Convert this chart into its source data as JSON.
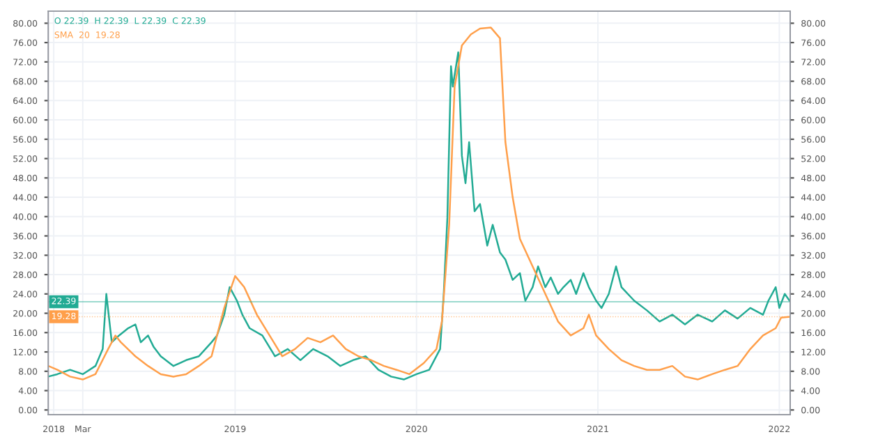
{
  "chart_data": {
    "type": "line",
    "annotations": [
      "O 22.39  H 22.39  L 22.39  C 22.39",
      "SMA  20  19.28"
    ],
    "series": [
      {
        "color": "#22ab94",
        "x": [
          2017.97,
          2018.02,
          2018.09,
          2018.16,
          2018.23,
          2018.27,
          2018.29,
          2018.32,
          2018.36,
          2018.41,
          2018.45,
          2018.48,
          2018.52,
          2018.55,
          2018.59,
          2018.66,
          2018.73,
          2018.8,
          2018.87,
          2018.9,
          2018.94,
          2018.97,
          2019.01,
          2019.04,
          2019.08,
          2019.15,
          2019.22,
          2019.29,
          2019.36,
          2019.43,
          2019.51,
          2019.58,
          2019.65,
          2019.72,
          2019.79,
          2019.86,
          2019.93,
          2020.0,
          2020.07,
          2020.13,
          2020.15,
          2020.17,
          2020.19,
          2020.2,
          2020.23,
          2020.25,
          2020.27,
          2020.29,
          2020.32,
          2020.35,
          2020.39,
          2020.42,
          2020.46,
          2020.49,
          2020.53,
          2020.57,
          2020.6,
          2020.64,
          2020.67,
          2020.71,
          2020.74,
          2020.78,
          2020.81,
          2020.85,
          2020.88,
          2020.92,
          2020.95,
          2020.99,
          2021.02,
          2021.06,
          2021.1,
          2021.13,
          2021.2,
          2021.27,
          2021.34,
          2021.41,
          2021.48,
          2021.55,
          2021.63,
          2021.7,
          2021.77,
          2021.84,
          2021.91,
          2021.94,
          2021.98,
          2022.0,
          2022.03,
          2022.06
        ],
        "values": [
          6.9,
          7.4,
          8.3,
          7.4,
          9.1,
          12.6,
          24.0,
          14.0,
          15.4,
          16.9,
          17.7,
          14.0,
          15.4,
          13.1,
          11.1,
          9.1,
          10.3,
          11.1,
          14.0,
          15.4,
          19.7,
          25.4,
          22.6,
          19.7,
          16.9,
          15.4,
          11.1,
          12.6,
          10.3,
          12.6,
          11.1,
          9.1,
          10.3,
          11.1,
          8.3,
          6.9,
          6.3,
          7.4,
          8.3,
          12.6,
          24.0,
          39.7,
          71.1,
          66.9,
          74.0,
          52.6,
          46.9,
          55.4,
          41.1,
          42.6,
          34.0,
          38.3,
          32.6,
          31.1,
          26.9,
          28.3,
          22.6,
          25.4,
          29.7,
          25.4,
          27.4,
          24.0,
          25.4,
          26.9,
          24.0,
          28.3,
          25.4,
          22.6,
          21.1,
          24.0,
          29.7,
          25.4,
          22.6,
          20.6,
          18.3,
          19.7,
          17.7,
          19.7,
          18.3,
          20.6,
          18.9,
          21.1,
          19.7,
          22.6,
          25.4,
          21.1,
          24.0,
          22.4
        ]
      },
      {
        "color": "#ff9f4a",
        "x": [
          2017.97,
          2018.02,
          2018.09,
          2018.16,
          2018.23,
          2018.3,
          2018.34,
          2018.37,
          2018.45,
          2018.52,
          2018.59,
          2018.66,
          2018.73,
          2018.8,
          2018.87,
          2018.94,
          2019.0,
          2019.05,
          2019.12,
          2019.19,
          2019.26,
          2019.33,
          2019.4,
          2019.47,
          2019.54,
          2019.61,
          2019.68,
          2019.75,
          2019.82,
          2019.89,
          2019.96,
          2020.04,
          2020.11,
          2020.14,
          2020.18,
          2020.21,
          2020.25,
          2020.3,
          2020.35,
          2020.41,
          2020.46,
          2020.49,
          2020.53,
          2020.57,
          2020.64,
          2020.71,
          2020.78,
          2020.85,
          2020.92,
          2020.95,
          2020.99,
          2021.06,
          2021.13,
          2021.2,
          2021.27,
          2021.34,
          2021.41,
          2021.48,
          2021.55,
          2021.63,
          2021.7,
          2021.77,
          2021.84,
          2021.91,
          2021.98,
          2022.01,
          2022.06
        ],
        "values": [
          9.1,
          8.3,
          6.9,
          6.3,
          7.4,
          12.6,
          15.4,
          14.0,
          11.1,
          9.1,
          7.4,
          6.9,
          7.4,
          9.1,
          11.1,
          21.1,
          27.7,
          25.4,
          19.7,
          15.4,
          11.1,
          12.6,
          14.9,
          14.0,
          15.4,
          12.6,
          11.1,
          10.3,
          9.1,
          8.3,
          7.4,
          9.7,
          12.6,
          18.3,
          38.3,
          66.9,
          75.4,
          77.7,
          78.9,
          79.1,
          76.9,
          55.4,
          44.0,
          35.4,
          29.7,
          24.0,
          18.3,
          15.4,
          16.9,
          19.7,
          15.4,
          12.6,
          10.3,
          9.1,
          8.3,
          8.3,
          9.1,
          6.9,
          6.3,
          7.4,
          8.3,
          9.1,
          12.6,
          15.4,
          16.9,
          19.1,
          19.3
        ]
      }
    ],
    "xlim": [
      2017.97,
      2022.06
    ],
    "xticks": [
      {
        "value": 2018,
        "label": "2018"
      },
      {
        "value": 2018.16,
        "label": "Mar"
      },
      {
        "value": 2019,
        "label": "2019"
      },
      {
        "value": 2020,
        "label": "2020"
      },
      {
        "value": 2021,
        "label": "2021"
      },
      {
        "value": 2022,
        "label": "2022"
      }
    ],
    "ylim": [
      -1,
      82.5
    ],
    "yticks": [
      {
        "value": 0,
        "label": "0.00"
      },
      {
        "value": 4,
        "label": "4.00"
      },
      {
        "value": 8,
        "label": "8.00"
      },
      {
        "value": 12,
        "label": "12.00"
      },
      {
        "value": 16,
        "label": "16.00"
      },
      {
        "value": 20,
        "label": "20.00"
      },
      {
        "value": 24,
        "label": "24.00"
      },
      {
        "value": 28,
        "label": "28.00"
      },
      {
        "value": 32,
        "label": "32.00"
      },
      {
        "value": 36,
        "label": "36.00"
      },
      {
        "value": 40,
        "label": "40.00"
      },
      {
        "value": 44,
        "label": "44.00"
      },
      {
        "value": 48,
        "label": "48.00"
      },
      {
        "value": 52,
        "label": "52.00"
      },
      {
        "value": 56,
        "label": "56.00"
      },
      {
        "value": 60,
        "label": "60.00"
      },
      {
        "value": 64,
        "label": "64.00"
      },
      {
        "value": 68,
        "label": "68.00"
      },
      {
        "value": 72,
        "label": "72.00"
      },
      {
        "value": 76,
        "label": "76.00"
      },
      {
        "value": 80,
        "label": "80.00"
      }
    ],
    "y2lim": [
      -1,
      82.5
    ],
    "y2ticks": [
      {
        "value": 0,
        "label": "0.00"
      },
      {
        "value": 4,
        "label": "4.00"
      },
      {
        "value": 8,
        "label": "8.00"
      },
      {
        "value": 12,
        "label": "12.00"
      },
      {
        "value": 16,
        "label": "16.00"
      },
      {
        "value": 20,
        "label": "20.00"
      },
      {
        "value": 24,
        "label": "24.00"
      },
      {
        "value": 28,
        "label": "28.00"
      },
      {
        "value": 32,
        "label": "32.00"
      },
      {
        "value": 36,
        "label": "36.00"
      },
      {
        "value": 40,
        "label": "40.00"
      },
      {
        "value": 44,
        "label": "44.00"
      },
      {
        "value": 48,
        "label": "48.00"
      },
      {
        "value": 52,
        "label": "52.00"
      },
      {
        "value": 56,
        "label": "56.00"
      },
      {
        "value": 60,
        "label": "60.00"
      },
      {
        "value": 64,
        "label": "64.00"
      },
      {
        "value": 68,
        "label": "68.00"
      },
      {
        "value": 72,
        "label": "72.00"
      },
      {
        "value": 76,
        "label": "76.00"
      },
      {
        "value": 80,
        "label": "80.00"
      }
    ],
    "ref_lines": [
      {
        "axis": "y",
        "value": 22.39,
        "label": "22.39",
        "color": "#22ab94"
      },
      {
        "axis": "y",
        "value": 19.28,
        "label": "19.28",
        "color": "#ff9f4a",
        "line_style": "dotted"
      }
    ],
    "grid": true,
    "legend": false,
    "marker": "none",
    "line_style": "solid"
  }
}
